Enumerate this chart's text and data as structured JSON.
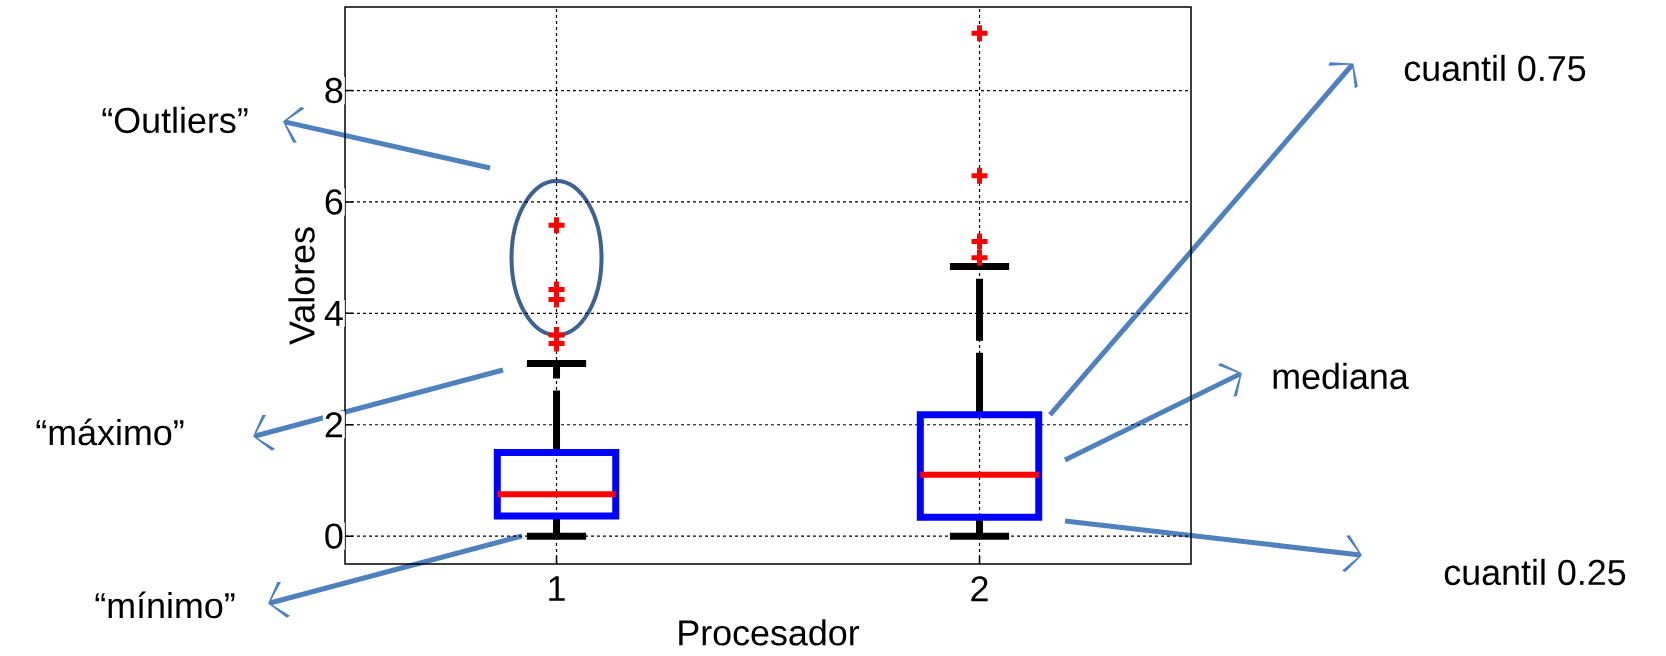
{
  "chart_data": {
    "type": "box",
    "xlabel": "Procesador",
    "ylabel": "Valores",
    "categories": [
      "1",
      "2"
    ],
    "series": [
      {
        "color": "#0000ff",
        "boxes": [
          {
            "low": 0,
            "q1": 0.36,
            "median": 0.75,
            "q3": 1.5,
            "high": 3.1,
            "outliers": [
              5.58,
              4.43,
              4.25,
              3.61,
              3.46
            ]
          },
          {
            "low": 0,
            "q1": 0.34,
            "median": 1.1,
            "q3": 2.18,
            "high": 4.84,
            "outliers": [
              9.03,
              6.47,
              5.29,
              5.0
            ]
          }
        ]
      }
    ],
    "ylim": [
      -0.5,
      9.5
    ],
    "yticks": [
      0,
      2,
      4,
      6,
      8
    ],
    "grid": true,
    "annotations": [
      "“Outliers”",
      "“máximo”",
      "“mínimo”",
      "cuantil 0.75",
      "mediana",
      "cuantil 0.25"
    ]
  }
}
